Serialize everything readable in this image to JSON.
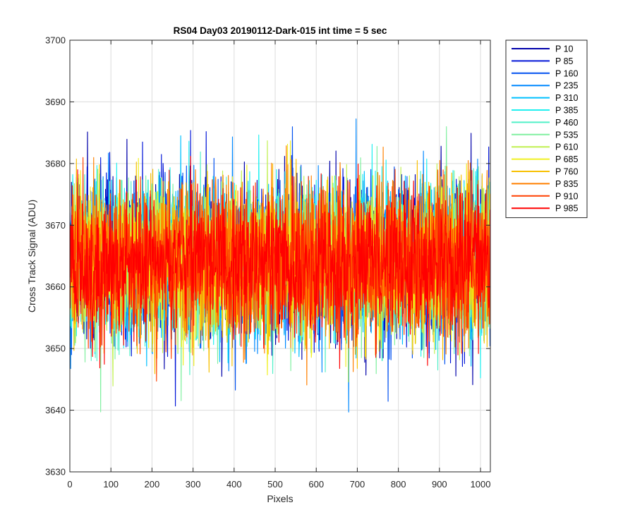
{
  "chart_data": {
    "type": "line",
    "title": "RS04 Day03 20190112-Dark-015 int time = 5 sec",
    "xlabel": "Pixels",
    "ylabel": "Cross Track Signal (ADU)",
    "xlim": [
      0,
      1024
    ],
    "ylim": [
      3630,
      3700
    ],
    "xticks": [
      0,
      100,
      200,
      300,
      400,
      500,
      600,
      700,
      800,
      900,
      1000
    ],
    "yticks": [
      3630,
      3640,
      3650,
      3660,
      3670,
      3680,
      3690,
      3700
    ],
    "grid": true,
    "legend_position": "outside-top-right",
    "signal_summary": {
      "mean": 3664,
      "typical_low": 3652,
      "typical_high": 3676,
      "min_observed": 3635,
      "max_observed": 3693
    },
    "series": [
      {
        "name": "P 10",
        "color": "#0000aa"
      },
      {
        "name": "P 85",
        "color": "#0014d8"
      },
      {
        "name": "P 160",
        "color": "#0050f0"
      },
      {
        "name": "P 235",
        "color": "#0088ff"
      },
      {
        "name": "P 310",
        "color": "#00c0ff"
      },
      {
        "name": "P 385",
        "color": "#20f0f0"
      },
      {
        "name": "P 460",
        "color": "#50f0c8"
      },
      {
        "name": "P 535",
        "color": "#80f0a0"
      },
      {
        "name": "P 610",
        "color": "#c0f050"
      },
      {
        "name": "P 685",
        "color": "#f0f020"
      },
      {
        "name": "P 760",
        "color": "#f8c000"
      },
      {
        "name": "P 835",
        "color": "#ff8000"
      },
      {
        "name": "P 910",
        "color": "#ff4000"
      },
      {
        "name": "P 985",
        "color": "#ff0000"
      }
    ]
  }
}
